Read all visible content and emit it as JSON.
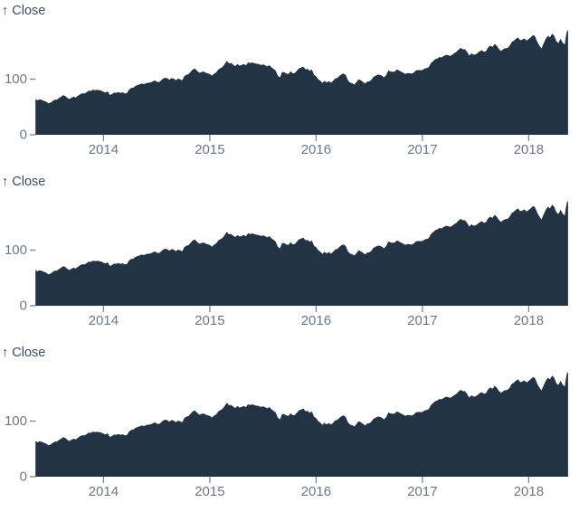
{
  "colors": {
    "background": "#ffffff",
    "area_fill": "#213345",
    "tick_text": "#6b7787",
    "tick_stroke": "#7b8694",
    "axis_label_text": "#424c5e"
  },
  "chart_data": {
    "type": "area",
    "title": "",
    "series_name": "Close",
    "ylabel": "↑ Close",
    "xlabel": "",
    "grid": false,
    "legend": false,
    "x_domain_years": [
      2013.36,
      2018.38
    ],
    "y_domain": [
      0,
      193
    ],
    "x_tick_labels": [
      "2014",
      "2015",
      "2016",
      "2017",
      "2018"
    ],
    "x_tick_values": [
      2014,
      2015,
      2016,
      2017,
      2018
    ],
    "y_tick_labels": [
      "100",
      "0"
    ],
    "y_tick_values": [
      100,
      0
    ],
    "charts": [
      {
        "ylabel": "↑ Close"
      },
      {
        "ylabel": "↑ Close"
      },
      {
        "ylabel": "↑ Close"
      }
    ],
    "points": [
      [
        2013.36,
        64.3
      ],
      [
        2013.38,
        61.9
      ],
      [
        2013.4,
        63.7
      ],
      [
        2013.42,
        62.6
      ],
      [
        2013.44,
        60.9
      ],
      [
        2013.46,
        59.5
      ],
      [
        2013.48,
        56.5
      ],
      [
        2013.5,
        57.5
      ],
      [
        2013.52,
        60.3
      ],
      [
        2013.54,
        62.9
      ],
      [
        2013.56,
        63.1
      ],
      [
        2013.58,
        65.8
      ],
      [
        2013.6,
        68.1
      ],
      [
        2013.62,
        71.1
      ],
      [
        2013.64,
        69.8
      ],
      [
        2013.66,
        66.1
      ],
      [
        2013.68,
        64.3
      ],
      [
        2013.7,
        66.8
      ],
      [
        2013.72,
        68.3
      ],
      [
        2013.74,
        67.0
      ],
      [
        2013.76,
        70.4
      ],
      [
        2013.78,
        72.7
      ],
      [
        2013.8,
        74.7
      ],
      [
        2013.82,
        74.2
      ],
      [
        2013.84,
        76.2
      ],
      [
        2013.86,
        79.4
      ],
      [
        2013.88,
        78.7
      ],
      [
        2013.9,
        81.1
      ],
      [
        2013.92,
        80.0
      ],
      [
        2013.94,
        80.9
      ],
      [
        2013.96,
        80.1
      ],
      [
        2013.98,
        79.2
      ],
      [
        2014.0,
        77.3
      ],
      [
        2014.02,
        76.1
      ],
      [
        2014.04,
        78.1
      ],
      [
        2014.06,
        71.5
      ],
      [
        2014.08,
        73.2
      ],
      [
        2014.1,
        75.8
      ],
      [
        2014.12,
        75.4
      ],
      [
        2014.14,
        76.7
      ],
      [
        2014.16,
        75.2
      ],
      [
        2014.18,
        76.5
      ],
      [
        2014.2,
        74.2
      ],
      [
        2014.22,
        75.0
      ],
      [
        2014.24,
        81.1
      ],
      [
        2014.26,
        84.3
      ],
      [
        2014.28,
        84.6
      ],
      [
        2014.3,
        87.7
      ],
      [
        2014.32,
        89.4
      ],
      [
        2014.34,
        90.4
      ],
      [
        2014.36,
        92.2
      ],
      [
        2014.38,
        90.9
      ],
      [
        2014.4,
        92.9
      ],
      [
        2014.42,
        93.5
      ],
      [
        2014.44,
        94.0
      ],
      [
        2014.46,
        95.6
      ],
      [
        2014.48,
        97.7
      ],
      [
        2014.5,
        95.6
      ],
      [
        2014.52,
        94.5
      ],
      [
        2014.54,
        97.2
      ],
      [
        2014.56,
        100.9
      ],
      [
        2014.58,
        102.5
      ],
      [
        2014.6,
        101.6
      ],
      [
        2014.62,
        99.0
      ],
      [
        2014.64,
        101.8
      ],
      [
        2014.66,
        101.0
      ],
      [
        2014.68,
        97.9
      ],
      [
        2014.7,
        100.8
      ],
      [
        2014.72,
        99.8
      ],
      [
        2014.74,
        97.7
      ],
      [
        2014.76,
        105.2
      ],
      [
        2014.78,
        108.0
      ],
      [
        2014.8,
        108.9
      ],
      [
        2014.82,
        113.2
      ],
      [
        2014.84,
        117.6
      ],
      [
        2014.86,
        119.0
      ],
      [
        2014.88,
        115.0
      ],
      [
        2014.9,
        111.6
      ],
      [
        2014.92,
        112.7
      ],
      [
        2014.94,
        113.9
      ],
      [
        2014.96,
        111.8
      ],
      [
        2014.98,
        110.4
      ],
      [
        2015.0,
        109.3
      ],
      [
        2015.02,
        106.3
      ],
      [
        2015.04,
        109.8
      ],
      [
        2015.06,
        112.0
      ],
      [
        2015.08,
        117.2
      ],
      [
        2015.1,
        119.6
      ],
      [
        2015.12,
        122.0
      ],
      [
        2015.14,
        127.1
      ],
      [
        2015.16,
        133.0
      ],
      [
        2015.18,
        128.5
      ],
      [
        2015.2,
        129.1
      ],
      [
        2015.22,
        125.9
      ],
      [
        2015.24,
        123.6
      ],
      [
        2015.26,
        127.0
      ],
      [
        2015.28,
        124.4
      ],
      [
        2015.3,
        125.3
      ],
      [
        2015.32,
        127.1
      ],
      [
        2015.34,
        124.8
      ],
      [
        2015.36,
        130.3
      ],
      [
        2015.38,
        129.0
      ],
      [
        2015.4,
        130.1
      ],
      [
        2015.42,
        128.6
      ],
      [
        2015.44,
        127.6
      ],
      [
        2015.46,
        127.2
      ],
      [
        2015.48,
        125.4
      ],
      [
        2015.5,
        126.4
      ],
      [
        2015.52,
        125.2
      ],
      [
        2015.54,
        122.8
      ],
      [
        2015.56,
        125.2
      ],
      [
        2015.58,
        121.3
      ],
      [
        2015.6,
        118.4
      ],
      [
        2015.62,
        115.5
      ],
      [
        2015.64,
        105.8
      ],
      [
        2015.66,
        103.1
      ],
      [
        2015.68,
        112.9
      ],
      [
        2015.7,
        112.3
      ],
      [
        2015.72,
        110.2
      ],
      [
        2015.74,
        109.3
      ],
      [
        2015.76,
        114.2
      ],
      [
        2015.78,
        110.4
      ],
      [
        2015.8,
        111.0
      ],
      [
        2015.82,
        115.3
      ],
      [
        2015.84,
        119.5
      ],
      [
        2015.86,
        120.6
      ],
      [
        2015.88,
        122.6
      ],
      [
        2015.9,
        117.8
      ],
      [
        2015.92,
        118.3
      ],
      [
        2015.94,
        115.0
      ],
      [
        2015.96,
        117.3
      ],
      [
        2015.98,
        108.0
      ],
      [
        2016.0,
        105.4
      ],
      [
        2016.02,
        100.0
      ],
      [
        2016.04,
        97.1
      ],
      [
        2016.06,
        93.4
      ],
      [
        2016.08,
        97.3
      ],
      [
        2016.1,
        94.0
      ],
      [
        2016.12,
        96.6
      ],
      [
        2016.14,
        93.7
      ],
      [
        2016.16,
        96.9
      ],
      [
        2016.18,
        101.1
      ],
      [
        2016.2,
        102.3
      ],
      [
        2016.22,
        105.9
      ],
      [
        2016.24,
        109.0
      ],
      [
        2016.26,
        110.0
      ],
      [
        2016.28,
        107.1
      ],
      [
        2016.3,
        97.8
      ],
      [
        2016.32,
        93.7
      ],
      [
        2016.34,
        92.7
      ],
      [
        2016.36,
        90.3
      ],
      [
        2016.38,
        94.6
      ],
      [
        2016.4,
        99.9
      ],
      [
        2016.42,
        97.9
      ],
      [
        2016.44,
        95.3
      ],
      [
        2016.46,
        92.0
      ],
      [
        2016.48,
        95.6
      ],
      [
        2016.5,
        95.9
      ],
      [
        2016.52,
        98.8
      ],
      [
        2016.54,
        104.2
      ],
      [
        2016.56,
        106.0
      ],
      [
        2016.58,
        108.2
      ],
      [
        2016.6,
        107.6
      ],
      [
        2016.62,
        106.1
      ],
      [
        2016.64,
        103.1
      ],
      [
        2016.66,
        107.7
      ],
      [
        2016.68,
        115.6
      ],
      [
        2016.7,
        113.6
      ],
      [
        2016.72,
        113.1
      ],
      [
        2016.74,
        113.7
      ],
      [
        2016.76,
        117.6
      ],
      [
        2016.78,
        115.6
      ],
      [
        2016.8,
        113.5
      ],
      [
        2016.82,
        111.5
      ],
      [
        2016.84,
        109.5
      ],
      [
        2016.86,
        111.0
      ],
      [
        2016.88,
        110.5
      ],
      [
        2016.9,
        109.9
      ],
      [
        2016.92,
        112.1
      ],
      [
        2016.94,
        115.8
      ],
      [
        2016.96,
        116.3
      ],
      [
        2016.98,
        116.2
      ],
      [
        2017.0,
        116.2
      ],
      [
        2017.02,
        119.0
      ],
      [
        2017.04,
        120.0
      ],
      [
        2017.06,
        121.4
      ],
      [
        2017.08,
        128.8
      ],
      [
        2017.1,
        132.1
      ],
      [
        2017.12,
        135.7
      ],
      [
        2017.14,
        137.0
      ],
      [
        2017.16,
        139.8
      ],
      [
        2017.18,
        139.0
      ],
      [
        2017.2,
        141.5
      ],
      [
        2017.22,
        143.7
      ],
      [
        2017.24,
        143.2
      ],
      [
        2017.26,
        141.6
      ],
      [
        2017.28,
        143.7
      ],
      [
        2017.3,
        146.6
      ],
      [
        2017.32,
        149.0
      ],
      [
        2017.34,
        153.0
      ],
      [
        2017.36,
        156.1
      ],
      [
        2017.38,
        153.6
      ],
      [
        2017.4,
        153.9
      ],
      [
        2017.42,
        149.0
      ],
      [
        2017.44,
        142.3
      ],
      [
        2017.46,
        146.3
      ],
      [
        2017.48,
        144.0
      ],
      [
        2017.5,
        144.2
      ],
      [
        2017.52,
        147.1
      ],
      [
        2017.54,
        150.3
      ],
      [
        2017.56,
        152.1
      ],
      [
        2017.58,
        149.0
      ],
      [
        2017.6,
        150.6
      ],
      [
        2017.62,
        157.5
      ],
      [
        2017.64,
        160.1
      ],
      [
        2017.66,
        157.9
      ],
      [
        2017.68,
        163.5
      ],
      [
        2017.7,
        159.9
      ],
      [
        2017.72,
        154.1
      ],
      [
        2017.74,
        150.6
      ],
      [
        2017.76,
        153.8
      ],
      [
        2017.78,
        155.8
      ],
      [
        2017.8,
        156.0
      ],
      [
        2017.82,
        159.9
      ],
      [
        2017.84,
        166.7
      ],
      [
        2017.86,
        169.0
      ],
      [
        2017.88,
        172.5
      ],
      [
        2017.9,
        175.0
      ],
      [
        2017.92,
        170.0
      ],
      [
        2017.94,
        171.1
      ],
      [
        2017.96,
        173.1
      ],
      [
        2017.98,
        169.2
      ],
      [
        2018.0,
        172.3
      ],
      [
        2018.02,
        175.3
      ],
      [
        2018.04,
        179.3
      ],
      [
        2018.06,
        177.1
      ],
      [
        2018.08,
        167.4
      ],
      [
        2018.1,
        160.5
      ],
      [
        2018.12,
        155.2
      ],
      [
        2018.14,
        164.3
      ],
      [
        2018.16,
        172.4
      ],
      [
        2018.18,
        178.1
      ],
      [
        2018.2,
        175.0
      ],
      [
        2018.22,
        181.7
      ],
      [
        2018.24,
        178.0
      ],
      [
        2018.26,
        168.3
      ],
      [
        2018.28,
        164.9
      ],
      [
        2018.3,
        172.8
      ],
      [
        2018.32,
        165.3
      ],
      [
        2018.34,
        162.3
      ],
      [
        2018.35,
        176.6
      ],
      [
        2018.36,
        186.0
      ],
      [
        2018.37,
        188.6
      ]
    ]
  }
}
